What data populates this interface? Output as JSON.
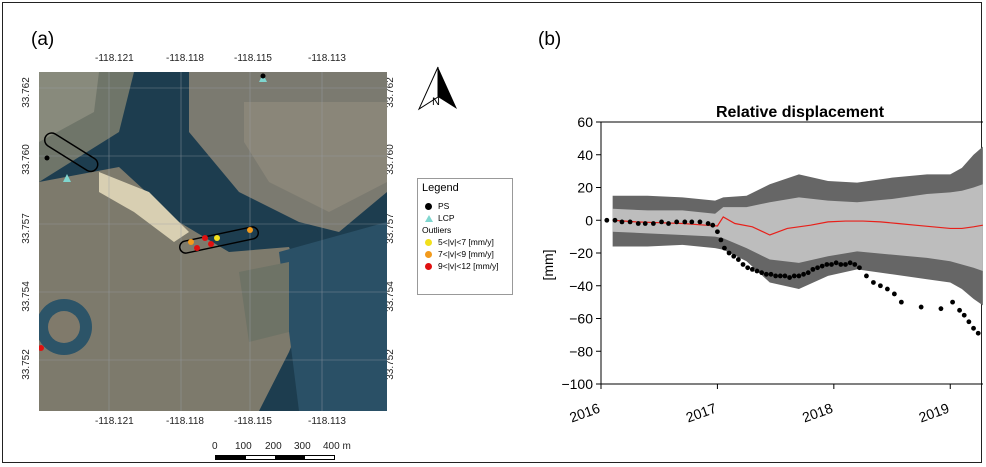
{
  "panels": {
    "a_label": "(a)",
    "b_label": "(b)"
  },
  "map": {
    "top_ticks": [
      "-118.121",
      "-118.118",
      "-118.115",
      "-118.113"
    ],
    "bottom_ticks": [
      "-118.121",
      "-118.118",
      "-118.115",
      "-118.113"
    ],
    "left_ticks": [
      "33.762",
      "33.760",
      "33.757",
      "33.754",
      "33.752"
    ],
    "right_ticks": [
      "33.762",
      "33.760",
      "33.757",
      "33.754",
      "33.752"
    ],
    "north_label": "N",
    "scale_labels": [
      "0",
      "100",
      "200",
      "300",
      "400 m"
    ],
    "legend": {
      "title": "Legend",
      "items": [
        {
          "label": "PS",
          "symbol": "dot",
          "color": "#000000"
        },
        {
          "label": "LCP",
          "symbol": "triangle",
          "color": "#7fd6cf"
        }
      ],
      "subtitle": "Outliers",
      "outliers": [
        {
          "label": "5<|v|<7 [mm/y]",
          "color": "#f2e01c"
        },
        {
          "label": "7<|v|<9 [mm/y]",
          "color": "#f29a1c"
        },
        {
          "label": "9<|v|<12 [mm/y]",
          "color": "#e01010"
        }
      ]
    }
  },
  "chart_data": {
    "type": "line",
    "title": "Relative displacement",
    "ylabel": "[mm]",
    "xlabel": "",
    "ylim": [
      -100,
      60
    ],
    "xlim": [
      2016.0,
      2019.35
    ],
    "yticks": [
      60,
      40,
      20,
      0,
      -20,
      -40,
      -60,
      -80,
      -100
    ],
    "xticks": [
      2016,
      2017,
      2018,
      2019
    ],
    "grid": false,
    "colors": {
      "outer_band": "#666666",
      "inner_band": "#bdbdbd",
      "mean": "#e8201a",
      "points": "#000000"
    },
    "outer_band": {
      "x": [
        2016.1,
        2016.4,
        2016.7,
        2016.98,
        2017.05,
        2017.25,
        2017.45,
        2017.7,
        2017.95,
        2018.2,
        2018.5,
        2018.8,
        2019.0,
        2019.1,
        2019.2,
        2019.28
      ],
      "upper": [
        15,
        15,
        14,
        12,
        14,
        15,
        22,
        28,
        24,
        23,
        26,
        28,
        28,
        32,
        40,
        45
      ],
      "lower": [
        -16,
        -16,
        -15,
        -17,
        -18,
        -25,
        -38,
        -42,
        -34,
        -30,
        -33,
        -36,
        -38,
        -42,
        -48,
        -52
      ]
    },
    "inner_band": {
      "x": [
        2016.1,
        2016.4,
        2016.7,
        2016.98,
        2017.05,
        2017.25,
        2017.45,
        2017.7,
        2017.95,
        2018.2,
        2018.5,
        2018.8,
        2019.0,
        2019.1,
        2019.2,
        2019.28
      ],
      "upper": [
        7,
        6,
        6,
        4,
        8,
        8,
        11,
        14,
        12,
        11,
        13,
        16,
        17,
        18,
        20,
        22
      ],
      "lower": [
        -7,
        -8,
        -9,
        -10,
        -11,
        -17,
        -24,
        -26,
        -22,
        -19,
        -21,
        -23,
        -25,
        -27,
        -29,
        -31
      ]
    },
    "mean": {
      "x": [
        2016.1,
        2016.3,
        2016.5,
        2016.7,
        2016.9,
        2017.0,
        2017.05,
        2017.15,
        2017.3,
        2017.45,
        2017.6,
        2017.8,
        2017.95,
        2018.1,
        2018.25,
        2018.4,
        2018.55,
        2018.7,
        2018.85,
        2019.0,
        2019.1,
        2019.2,
        2019.28
      ],
      "values": [
        0,
        -1,
        -1.5,
        -2,
        -3,
        -3.5,
        2,
        -2,
        -4,
        -9,
        -5,
        -3,
        -1,
        -0.5,
        -0.5,
        -1,
        -2,
        -3,
        -4,
        -5,
        -5,
        -4,
        -3
      ]
    },
    "points": {
      "x": [
        2016.05,
        2016.12,
        2016.18,
        2016.25,
        2016.32,
        2016.38,
        2016.45,
        2016.52,
        2016.58,
        2016.65,
        2016.72,
        2016.78,
        2016.85,
        2016.92,
        2016.96,
        2017.0,
        2017.03,
        2017.06,
        2017.1,
        2017.14,
        2017.18,
        2017.22,
        2017.26,
        2017.3,
        2017.34,
        2017.38,
        2017.42,
        2017.46,
        2017.5,
        2017.54,
        2017.58,
        2017.62,
        2017.66,
        2017.7,
        2017.74,
        2017.78,
        2017.82,
        2017.86,
        2017.9,
        2017.94,
        2017.98,
        2018.02,
        2018.06,
        2018.1,
        2018.14,
        2018.18,
        2018.22,
        2018.28,
        2018.34,
        2018.4,
        2018.46,
        2018.52,
        2018.58,
        2018.75,
        2018.92,
        2019.02,
        2019.08,
        2019.12,
        2019.16,
        2019.2,
        2019.24
      ],
      "values": [
        0,
        0,
        -1,
        -1,
        -2,
        -2,
        -2,
        -1,
        -2,
        -1,
        -1,
        -1,
        -1,
        -2,
        -3,
        -7,
        -12,
        -17,
        -20,
        -22,
        -24,
        -27,
        -29,
        -30,
        -31,
        -32,
        -33,
        -33,
        -34,
        -34,
        -34,
        -35,
        -34,
        -34,
        -33,
        -32,
        -30,
        -29,
        -28,
        -27,
        -27,
        -26,
        -27,
        -27,
        -26,
        -27,
        -29,
        -34,
        -38,
        -40,
        -42,
        -45,
        -50,
        -53,
        -54,
        -50,
        -55,
        -58,
        -62,
        -66,
        -69
      ]
    }
  }
}
